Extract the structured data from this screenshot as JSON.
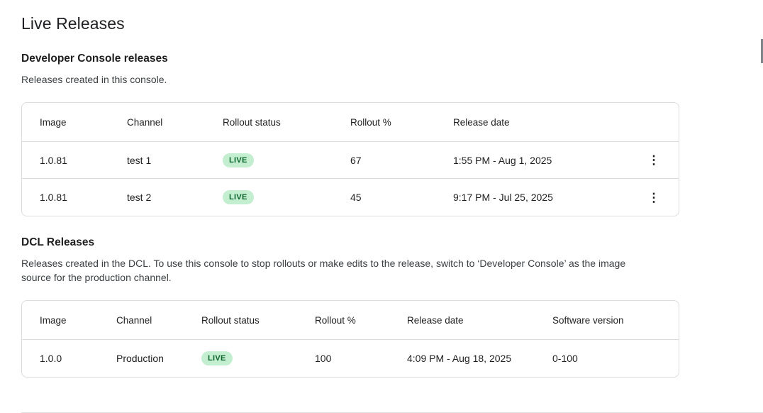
{
  "page": {
    "title": "Live Releases"
  },
  "icons": {
    "kebab": "⋮"
  },
  "colors": {
    "badge_bg": "#c4eed0",
    "badge_text": "#0d652d",
    "card_border": "#dadce0"
  },
  "sections": [
    {
      "heading": "Developer Console releases",
      "description": "Releases created in this console.",
      "table": {
        "columns": [
          "Image",
          "Channel",
          "Rollout status",
          "Rollout %",
          "Release date"
        ],
        "rows": [
          {
            "image": "1.0.81",
            "channel": "test 1",
            "status": "LIVE",
            "rollout": "67",
            "date": "1:55 PM - Aug 1, 2025"
          },
          {
            "image": "1.0.81",
            "channel": "test 2",
            "status": "LIVE",
            "rollout": "45",
            "date": "9:17 PM - Jul 25, 2025"
          }
        ]
      }
    },
    {
      "heading": "DCL Releases",
      "description": "Releases created in the DCL. To use this console to stop rollouts or make edits to the release, switch to ‘Developer Console’ as the image source for the production channel.",
      "table": {
        "columns": [
          "Image",
          "Channel",
          "Rollout status",
          "Rollout %",
          "Release date",
          "Software version"
        ],
        "rows": [
          {
            "image": "1.0.0",
            "channel": "Production",
            "status": "LIVE",
            "rollout": "100",
            "date": "4:09 PM - Aug 18, 2025",
            "software_version": "0-100"
          }
        ]
      }
    }
  ]
}
